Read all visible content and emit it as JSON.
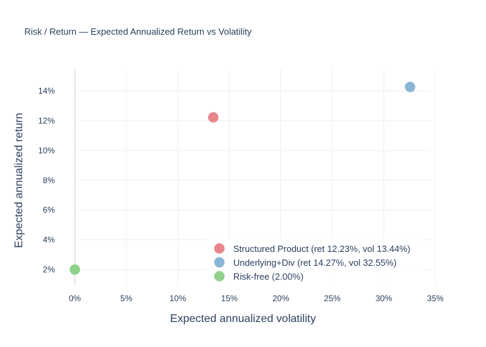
{
  "chart_data": {
    "type": "scatter",
    "title": "Risk / Return — Expected Annualized Return vs Volatility",
    "xlabel": "Expected annualized volatility",
    "ylabel": "Expected annualized return",
    "xlim": [
      -0.012,
      0.352
    ],
    "ylim": [
      0.0095,
      0.1545
    ],
    "x_ticks": [
      0,
      0.05,
      0.1,
      0.15,
      0.2,
      0.25,
      0.3,
      0.35
    ],
    "x_tick_labels": [
      "0%",
      "5%",
      "10%",
      "15%",
      "20%",
      "25%",
      "30%",
      "35%"
    ],
    "y_ticks": [
      0.02,
      0.04,
      0.06,
      0.08,
      0.1,
      0.12,
      0.14
    ],
    "y_tick_labels": [
      "2%",
      "4%",
      "6%",
      "8%",
      "10%",
      "12%",
      "14%"
    ],
    "grid": true,
    "legend_position": "bottom-right",
    "series": [
      {
        "name": "Structured Product (ret 12.23%, vol 13.44%)",
        "color": "#e7868c",
        "x": [
          0.1344
        ],
        "y": [
          0.1223
        ]
      },
      {
        "name": "Underlying+Div (ret 14.27%, vol 32.55%)",
        "color": "#8ab6d6",
        "x": [
          0.3255
        ],
        "y": [
          0.1427
        ]
      },
      {
        "name": "Risk-free (2.00%)",
        "color": "#8fd18a",
        "x": [
          0.0
        ],
        "y": [
          0.02
        ]
      }
    ]
  }
}
